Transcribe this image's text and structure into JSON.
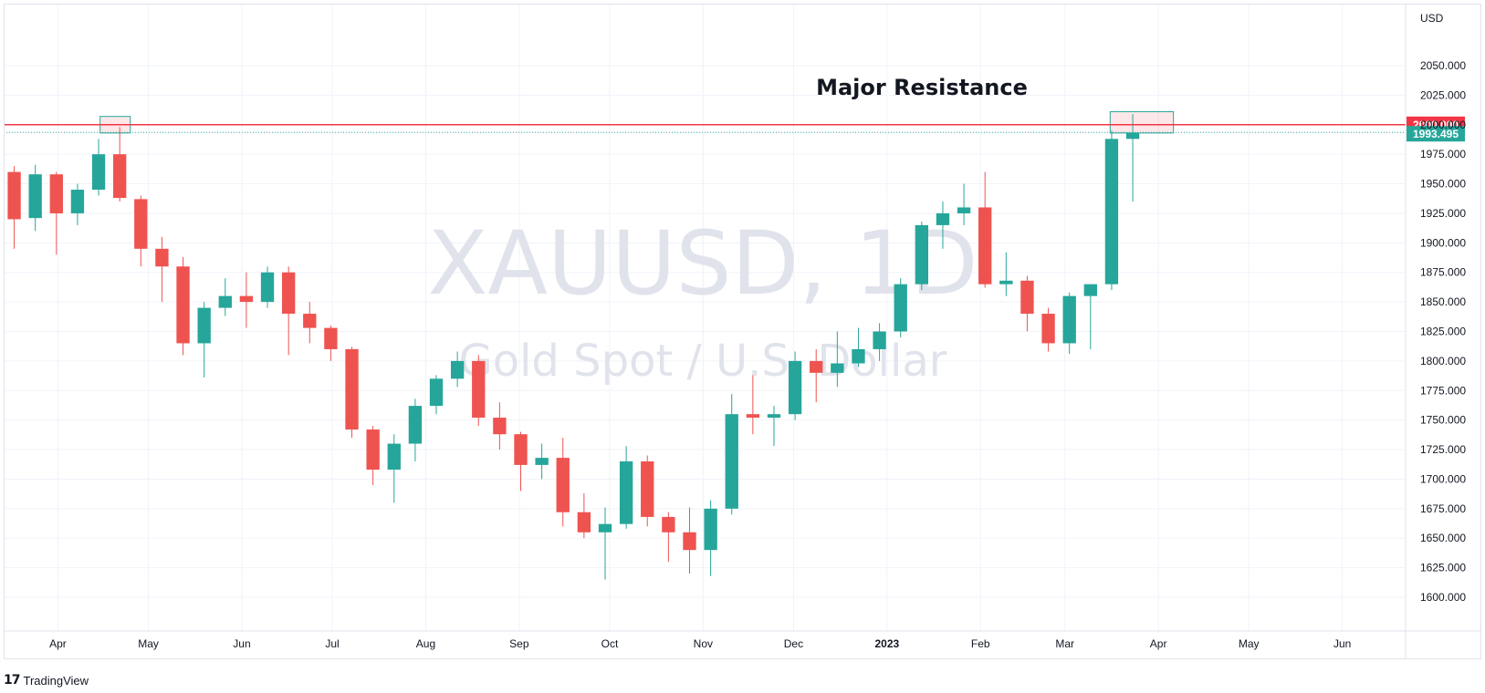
{
  "symbol": "XAUUSD, 1D",
  "subtitle": "Gold Spot / U.S. Dollar",
  "currency": "USD",
  "annotation": "Major Resistance",
  "brand": {
    "name": "TradingView",
    "logo_glyph": "17"
  },
  "colors": {
    "up": "#26a69a",
    "down": "#ef5350",
    "resistance": "#f23645",
    "last_price": "#26a69a",
    "grid": "#f0f3fa",
    "watermark": "#e0e3eb"
  },
  "chart_data": {
    "type": "candlestick",
    "title": "XAUUSD, 1D",
    "subtitle": "Gold Spot / U.S. Dollar",
    "ylabel": "USD",
    "ylim": [
      1580,
      2080
    ],
    "x_range": [
      "2022-03-14",
      "2023-06-22"
    ],
    "y_ticks": [
      1600,
      1625,
      1650,
      1675,
      1700,
      1725,
      1750,
      1775,
      1800,
      1825,
      1850,
      1875,
      1900,
      1925,
      1950,
      1975,
      2000,
      2025,
      2050
    ],
    "y_tick_labels": [
      "1600.000",
      "1625.000",
      "1650.000",
      "1675.000",
      "1700.000",
      "1725.000",
      "1750.000",
      "1775.000",
      "1800.000",
      "1825.000",
      "1850.000",
      "1875.000",
      "1900.000",
      "1925.000",
      "1950.000",
      "1975.000",
      "2000.000",
      "2025.000",
      "2050.000"
    ],
    "x_ticks": [
      {
        "label": "Apr",
        "date": "2022-04-01"
      },
      {
        "label": "May",
        "date": "2022-05-01"
      },
      {
        "label": "Jun",
        "date": "2022-06-01"
      },
      {
        "label": "Jul",
        "date": "2022-07-01"
      },
      {
        "label": "Aug",
        "date": "2022-08-01"
      },
      {
        "label": "Sep",
        "date": "2022-09-01"
      },
      {
        "label": "Oct",
        "date": "2022-10-01"
      },
      {
        "label": "Nov",
        "date": "2022-11-01"
      },
      {
        "label": "Dec",
        "date": "2022-12-01"
      },
      {
        "label": "2023",
        "date": "2023-01-01"
      },
      {
        "label": "Feb",
        "date": "2023-02-01"
      },
      {
        "label": "Mar",
        "date": "2023-03-01"
      },
      {
        "label": "Apr",
        "date": "2023-04-01"
      },
      {
        "label": "May",
        "date": "2023-05-01"
      },
      {
        "label": "Jun",
        "date": "2023-06-01"
      }
    ],
    "resistance_level": 2000.0,
    "resistance_label": "2000.000",
    "last_price": 1993.495,
    "last_price_label": "1993.495",
    "highlight_zones": [
      {
        "start": "2022-04-15",
        "end": "2022-04-25",
        "low": 1993,
        "high": 2007
      },
      {
        "start": "2023-03-16",
        "end": "2023-04-06",
        "low": 1993,
        "high": 2011
      }
    ],
    "series": [
      {
        "date": "2022-03-14",
        "open": 1960,
        "high": 1965,
        "low": 1895,
        "close": 1920
      },
      {
        "date": "2022-03-21",
        "open": 1921,
        "high": 1966,
        "low": 1910,
        "close": 1958
      },
      {
        "date": "2022-03-28",
        "open": 1958,
        "high": 1960,
        "low": 1890,
        "close": 1925
      },
      {
        "date": "2022-04-04",
        "open": 1925,
        "high": 1950,
        "low": 1915,
        "close": 1945
      },
      {
        "date": "2022-04-11",
        "open": 1945,
        "high": 1988,
        "low": 1940,
        "close": 1975
      },
      {
        "date": "2022-04-18",
        "open": 1975,
        "high": 1998,
        "low": 1935,
        "close": 1938
      },
      {
        "date": "2022-04-25",
        "open": 1937,
        "high": 1940,
        "low": 1880,
        "close": 1895
      },
      {
        "date": "2022-05-02",
        "open": 1895,
        "high": 1905,
        "low": 1850,
        "close": 1880
      },
      {
        "date": "2022-05-09",
        "open": 1880,
        "high": 1888,
        "low": 1805,
        "close": 1815
      },
      {
        "date": "2022-05-16",
        "open": 1815,
        "high": 1850,
        "low": 1786,
        "close": 1845
      },
      {
        "date": "2022-05-23",
        "open": 1845,
        "high": 1870,
        "low": 1838,
        "close": 1855
      },
      {
        "date": "2022-05-30",
        "open": 1855,
        "high": 1875,
        "low": 1828,
        "close": 1850
      },
      {
        "date": "2022-06-06",
        "open": 1850,
        "high": 1880,
        "low": 1845,
        "close": 1875
      },
      {
        "date": "2022-06-13",
        "open": 1875,
        "high": 1880,
        "low": 1805,
        "close": 1840
      },
      {
        "date": "2022-06-20",
        "open": 1840,
        "high": 1850,
        "low": 1815,
        "close": 1828
      },
      {
        "date": "2022-06-27",
        "open": 1828,
        "high": 1830,
        "low": 1800,
        "close": 1810
      },
      {
        "date": "2022-07-04",
        "open": 1810,
        "high": 1812,
        "low": 1735,
        "close": 1742
      },
      {
        "date": "2022-07-11",
        "open": 1742,
        "high": 1745,
        "low": 1695,
        "close": 1708
      },
      {
        "date": "2022-07-18",
        "open": 1708,
        "high": 1738,
        "low": 1680,
        "close": 1730
      },
      {
        "date": "2022-07-25",
        "open": 1730,
        "high": 1768,
        "low": 1715,
        "close": 1762
      },
      {
        "date": "2022-08-01",
        "open": 1762,
        "high": 1788,
        "low": 1755,
        "close": 1785
      },
      {
        "date": "2022-08-08",
        "open": 1785,
        "high": 1808,
        "low": 1778,
        "close": 1800
      },
      {
        "date": "2022-08-15",
        "open": 1800,
        "high": 1805,
        "low": 1745,
        "close": 1752
      },
      {
        "date": "2022-08-22",
        "open": 1752,
        "high": 1765,
        "low": 1725,
        "close": 1738
      },
      {
        "date": "2022-08-29",
        "open": 1738,
        "high": 1740,
        "low": 1690,
        "close": 1712
      },
      {
        "date": "2022-09-05",
        "open": 1712,
        "high": 1730,
        "low": 1700,
        "close": 1718
      },
      {
        "date": "2022-09-12",
        "open": 1718,
        "high": 1735,
        "low": 1660,
        "close": 1672
      },
      {
        "date": "2022-09-19",
        "open": 1672,
        "high": 1688,
        "low": 1650,
        "close": 1655
      },
      {
        "date": "2022-09-26",
        "open": 1655,
        "high": 1676,
        "low": 1615,
        "close": 1662
      },
      {
        "date": "2022-10-03",
        "open": 1662,
        "high": 1728,
        "low": 1658,
        "close": 1715
      },
      {
        "date": "2022-10-10",
        "open": 1715,
        "high": 1720,
        "low": 1660,
        "close": 1668
      },
      {
        "date": "2022-10-17",
        "open": 1668,
        "high": 1672,
        "low": 1630,
        "close": 1655
      },
      {
        "date": "2022-10-24",
        "open": 1655,
        "high": 1676,
        "low": 1620,
        "close": 1640
      },
      {
        "date": "2022-10-31",
        "open": 1640,
        "high": 1682,
        "low": 1618,
        "close": 1675
      },
      {
        "date": "2022-11-07",
        "open": 1675,
        "high": 1772,
        "low": 1670,
        "close": 1755
      },
      {
        "date": "2022-11-14",
        "open": 1755,
        "high": 1788,
        "low": 1738,
        "close": 1752
      },
      {
        "date": "2022-11-21",
        "open": 1752,
        "high": 1762,
        "low": 1728,
        "close": 1755
      },
      {
        "date": "2022-11-28",
        "open": 1755,
        "high": 1808,
        "low": 1750,
        "close": 1800
      },
      {
        "date": "2022-12-05",
        "open": 1800,
        "high": 1810,
        "low": 1765,
        "close": 1790
      },
      {
        "date": "2022-12-12",
        "open": 1790,
        "high": 1825,
        "low": 1778,
        "close": 1798
      },
      {
        "date": "2022-12-19",
        "open": 1798,
        "high": 1828,
        "low": 1795,
        "close": 1810
      },
      {
        "date": "2022-12-26",
        "open": 1810,
        "high": 1832,
        "low": 1800,
        "close": 1825
      },
      {
        "date": "2023-01-02",
        "open": 1825,
        "high": 1870,
        "low": 1820,
        "close": 1865
      },
      {
        "date": "2023-01-09",
        "open": 1865,
        "high": 1918,
        "low": 1860,
        "close": 1915
      },
      {
        "date": "2023-01-16",
        "open": 1915,
        "high": 1935,
        "low": 1895,
        "close": 1925
      },
      {
        "date": "2023-01-23",
        "open": 1925,
        "high": 1950,
        "low": 1915,
        "close": 1930
      },
      {
        "date": "2023-01-30",
        "open": 1930,
        "high": 1960,
        "low": 1862,
        "close": 1865
      },
      {
        "date": "2023-02-06",
        "open": 1865,
        "high": 1892,
        "low": 1855,
        "close": 1868
      },
      {
        "date": "2023-02-13",
        "open": 1868,
        "high": 1872,
        "low": 1825,
        "close": 1840
      },
      {
        "date": "2023-02-20",
        "open": 1840,
        "high": 1845,
        "low": 1808,
        "close": 1815
      },
      {
        "date": "2023-02-27",
        "open": 1815,
        "high": 1858,
        "low": 1806,
        "close": 1855
      },
      {
        "date": "2023-03-06",
        "open": 1855,
        "high": 1860,
        "low": 1810,
        "close": 1865
      },
      {
        "date": "2023-03-13",
        "open": 1865,
        "high": 1995,
        "low": 1860,
        "close": 1988
      },
      {
        "date": "2023-03-20",
        "open": 1988,
        "high": 2009,
        "low": 1935,
        "close": 1993
      }
    ]
  }
}
